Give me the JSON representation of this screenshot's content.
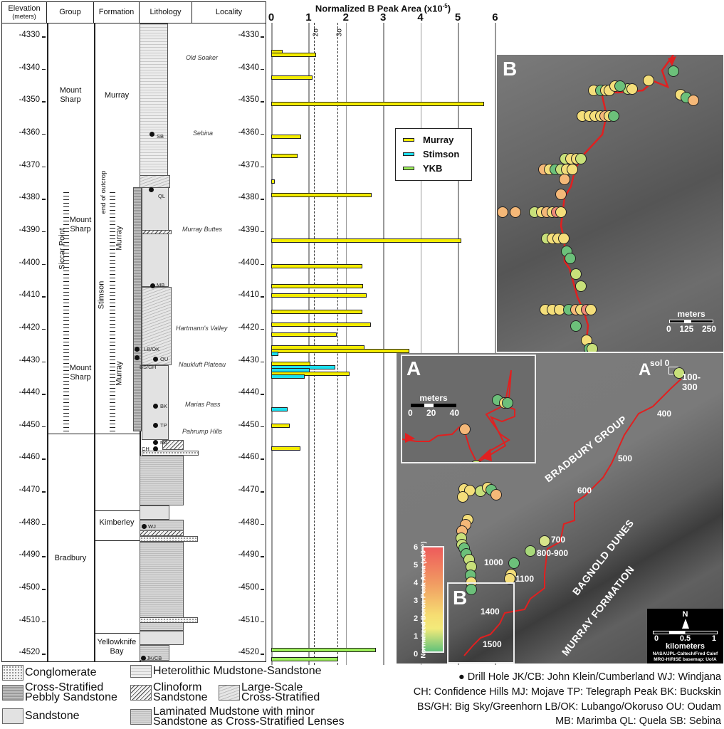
{
  "table": {
    "headers": {
      "elevation": "Elevation",
      "elevation_unit": "(meters)",
      "group": "Group",
      "formation": "Formation",
      "lithology": "Lithology",
      "locality": "Locality"
    },
    "elevation_ticks": [
      "-4330",
      "-4340",
      "-4350",
      "-4360",
      "-4370",
      "-4380",
      "-4390",
      "-4400",
      "-4410",
      "-4420",
      "-4430",
      "-4440",
      "-4450",
      "-4460",
      "-4470",
      "-4480",
      "-4490",
      "-4500",
      "-4510",
      "-4520"
    ],
    "groups": {
      "mount_sharp_top": "Mount Sharp",
      "siccar_point": "Siccar Point",
      "mount_sharp_mid": "Mount Sharp",
      "mount_sharp_low": "Mount Sharp",
      "bradbury": "Bradbury"
    },
    "formations": {
      "murray_top": "Murray",
      "end_of_outcrop": "end of outcrop",
      "murray_mid": "Murray",
      "stimson": "Stimson",
      "murray_low": "Murray",
      "kimberley": "Kimberley",
      "yellowknife_bay": "Yellowknife Bay"
    },
    "localities": [
      "Old Soaker",
      "Sebina",
      "Murray Buttes",
      "Hartmann's Valley",
      "Naukluft Plateau",
      "Marias Pass",
      "Pahrump Hills"
    ],
    "drill_holes": [
      "SB",
      "QL",
      "MB",
      "LB/OK",
      "OU",
      "BS/GH",
      "BK",
      "TP",
      "MJ",
      "CH",
      "WJ",
      "JK/CB"
    ]
  },
  "chart_data": {
    "type": "bar",
    "orientation": "horizontal",
    "title": "Normalized B Peak Area (x10⁻⁵)",
    "xlabel": "Normalized B Peak Area (x10^-5)",
    "ylabel": "Elevation (meters)",
    "x_ticks": [
      "0",
      "1",
      "2",
      "3",
      "4",
      "5",
      "6"
    ],
    "xlim": [
      0,
      6
    ],
    "ylim": [
      -4520,
      -4325
    ],
    "grid": true,
    "threshold_lines": [
      {
        "label": "2σ",
        "x": 1.22
      },
      {
        "label": "3σ",
        "x": 1.85
      }
    ],
    "legend": [
      "Murray",
      "Stimson",
      "YKB"
    ],
    "legend_position": "upper right",
    "colors": {
      "Murray": "#f4ec00",
      "Stimson": "#1be0ef",
      "YKB": "#9df05a"
    },
    "series": [
      {
        "name": "Murray",
        "points": [
          {
            "elev": -4335,
            "value": 0.3
          },
          {
            "elev": -4336,
            "value": 1.2
          },
          {
            "elev": -4343,
            "value": 1.1
          },
          {
            "elev": -4351,
            "value": 5.7
          },
          {
            "elev": -4361,
            "value": 0.8
          },
          {
            "elev": -4367,
            "value": 0.7
          },
          {
            "elev": -4375,
            "value": 0.1
          },
          {
            "elev": -4379,
            "value": 2.7
          },
          {
            "elev": -4393,
            "value": 5.1
          },
          {
            "elev": -4401,
            "value": 2.45
          },
          {
            "elev": -4407,
            "value": 2.47
          },
          {
            "elev": -4410,
            "value": 2.55
          },
          {
            "elev": -4415,
            "value": 2.45
          },
          {
            "elev": -4419,
            "value": 2.67
          },
          {
            "elev": -4422,
            "value": 1.75
          },
          {
            "elev": -4426,
            "value": 2.5
          },
          {
            "elev": -4427,
            "value": 3.7
          },
          {
            "elev": -4431,
            "value": 1.05
          },
          {
            "elev": -4434,
            "value": 2.1
          },
          {
            "elev": -4450,
            "value": 0.5
          },
          {
            "elev": -4457,
            "value": 0.78
          }
        ]
      },
      {
        "name": "Stimson",
        "points": [
          {
            "elev": -4428,
            "value": 0.2
          },
          {
            "elev": -4432,
            "value": 1.72
          },
          {
            "elev": -4433,
            "value": 1.03
          },
          {
            "elev": -4435,
            "value": 0.9
          },
          {
            "elev": -4445,
            "value": 0.43
          }
        ]
      },
      {
        "name": "YKB",
        "points": [
          {
            "elev": -4519,
            "value": 2.8
          },
          {
            "elev": -4522,
            "value": 1.8
          }
        ]
      }
    ]
  },
  "chart": {
    "title": "Normalized B Peak Area (x10",
    "title_exp": "-5",
    "title_close": ")",
    "sigma2": "2σ",
    "sigma3": "3σ",
    "legend": [
      {
        "label": "Murray",
        "color": "#f4ec00"
      },
      {
        "label": "Stimson",
        "color": "#1be0ef"
      },
      {
        "label": "YKB",
        "color": "#9df05a"
      }
    ]
  },
  "map_b": {
    "letter": "B",
    "scale_title": "meters",
    "scale_ticks": [
      "0",
      "125",
      "250"
    ]
  },
  "map_a": {
    "letter": "A",
    "scale_title": "meters",
    "scale_ticks": [
      "0",
      "20",
      "40"
    ]
  },
  "map_main": {
    "sol_labels": [
      "sol 0",
      "100-",
      "300",
      "400",
      "500",
      "600",
      "700",
      "800-900",
      "1000",
      "1100",
      "1400",
      "1500"
    ],
    "inset_a_marker": "A",
    "inset_b_marker": "B",
    "region_labels": [
      "BRADBURY GROUP",
      "BAGNOLD DUNES",
      "MURRAY FORMATION"
    ],
    "colorbar_title": "Normalized Boron Peak Area (x10⁻⁵)",
    "colorbar_ticks": [
      "6",
      "5",
      "4",
      "3",
      "2",
      "1",
      "0"
    ],
    "north": "N",
    "scale_ticks": [
      "0",
      "0.5",
      "1"
    ],
    "scale_unit": "kilometers",
    "credit_1": "NASA/JPL-Caltech/Fred Calef",
    "credit_2": "MRO-HiRISE basemap: UofA"
  },
  "lithology_legend": [
    {
      "label": "Conglomerate",
      "pattern": "conglo"
    },
    {
      "label": "Cross-Stratified Pebbly Sandstone",
      "pattern": "pebbly"
    },
    {
      "label": "Sandstone",
      "pattern": "sand"
    },
    {
      "label": "Heterolithic Mudstone-Sandstone",
      "pattern": "hetero"
    },
    {
      "label": "Clinoform Sandstone",
      "pattern": "clino"
    },
    {
      "label": "Large-Scale Cross-Stratified",
      "pattern": "large"
    },
    {
      "label": "Laminated Mudstone with minor Sandstone as Cross-Stratified Lenses",
      "pattern": "lam"
    }
  ],
  "abbreviations": {
    "row1": "● Drill Hole   JK/CB: John Klein/Cumberland   WJ: Windjana",
    "row2": "CH: Confidence Hills   MJ: Mojave   TP: Telegraph Peak   BK: Buckskin",
    "row3": "BS/GH: Big Sky/Greenhorn   LB/OK: Lubango/Okoruso   OU: Oudam",
    "row4": "MB: Marimba   QL: Quela   SB: Sebina"
  }
}
